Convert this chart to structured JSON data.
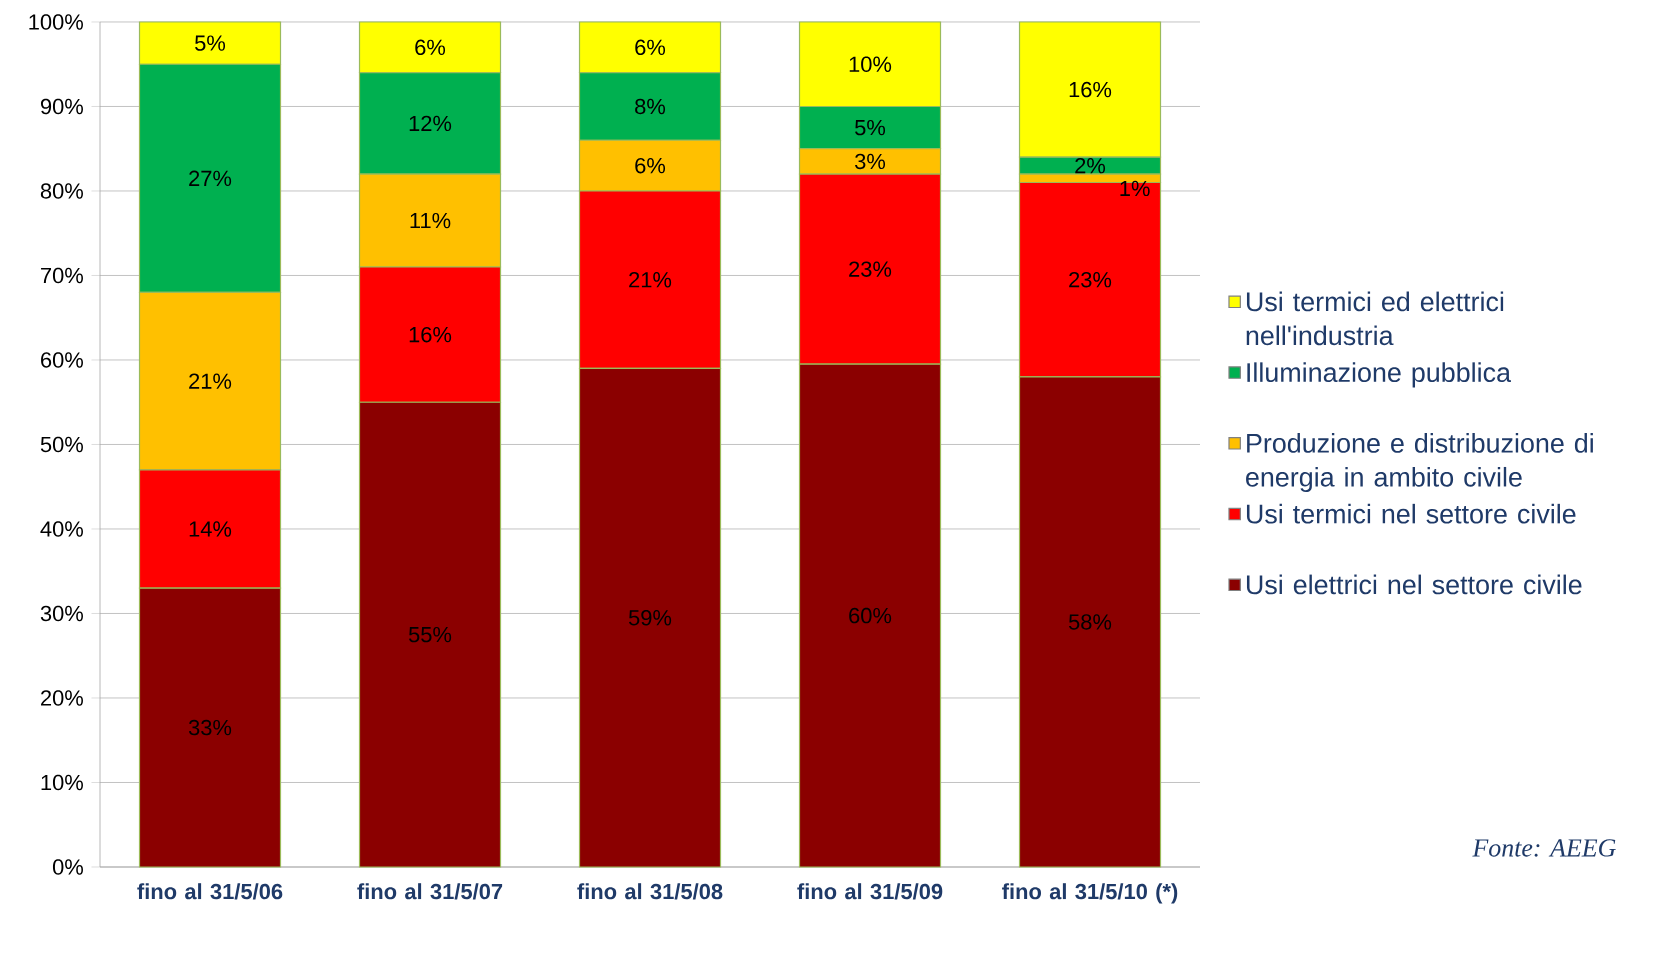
{
  "chart_data": {
    "type": "bar",
    "stacked": true,
    "categories": [
      "fino al 31/5/06",
      "fino al 31/5/07",
      "fino al 31/5/08",
      "fino al 31/5/09",
      "fino al 31/5/10 (*)"
    ],
    "series": [
      {
        "name": "Usi elettrici nel settore civile",
        "color": "#8b0000",
        "values": [
          33,
          55,
          59,
          59.5,
          58
        ],
        "value_labels": [
          "33%",
          "55%",
          "59%",
          "60%",
          "58%"
        ]
      },
      {
        "name": "Usi termici nel settore civile",
        "color": "#ff0000",
        "values": [
          14,
          16,
          21,
          22.5,
          23
        ],
        "value_labels": [
          "14%",
          "16%",
          "21%",
          "23%",
          "23%"
        ]
      },
      {
        "name": "Produzione e distribuzione di energia in ambito civile",
        "color": "#ffc000",
        "values": [
          21,
          11,
          6,
          3,
          1
        ],
        "value_labels": [
          "21%",
          "11%",
          "6%",
          "3%",
          "1%"
        ]
      },
      {
        "name": "Illuminazione pubblica",
        "color": "#00b050",
        "values": [
          27,
          12,
          8,
          5,
          2
        ],
        "value_labels": [
          "27%",
          "12%",
          "8%",
          "5%",
          "2%"
        ]
      },
      {
        "name": "Usi termici ed elettrici nell'industria",
        "color": "#ffff00",
        "values": [
          5,
          6,
          6,
          10,
          16
        ],
        "value_labels": [
          "5%",
          "6%",
          "6%",
          "10%",
          "16%"
        ]
      }
    ],
    "ylim": [
      0,
      100
    ],
    "yticks": [
      {
        "value": 0,
        "label": "0%"
      },
      {
        "value": 10,
        "label": "10%"
      },
      {
        "value": 20,
        "label": "20%"
      },
      {
        "value": 30,
        "label": "30%"
      },
      {
        "value": 40,
        "label": "40%"
      },
      {
        "value": 50,
        "label": "50%"
      },
      {
        "value": 60,
        "label": "60%"
      },
      {
        "value": 70,
        "label": "70%"
      },
      {
        "value": 80,
        "label": "80%"
      },
      {
        "value": 90,
        "label": "90%"
      },
      {
        "value": 100,
        "label": "100%"
      }
    ],
    "grid": "y",
    "legend": "right",
    "annotations": [
      "Fonte: AEEG"
    ]
  }
}
